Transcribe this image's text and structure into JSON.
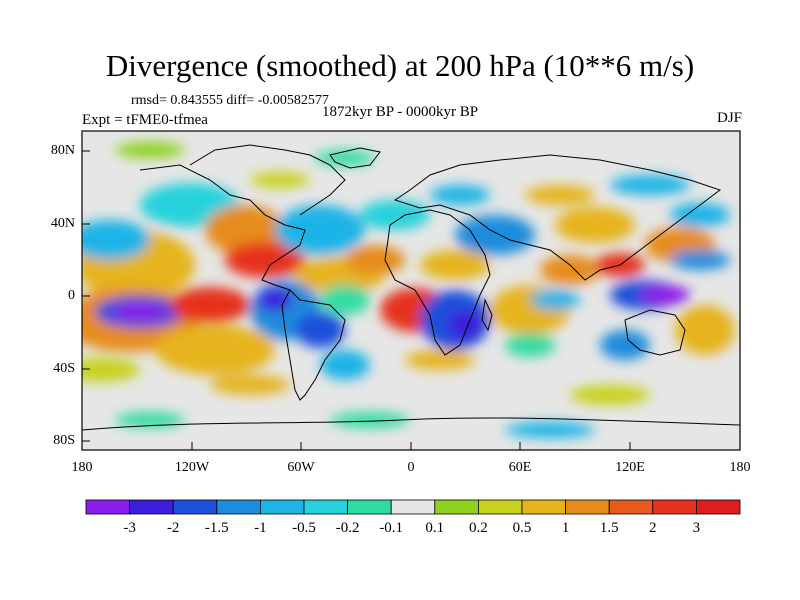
{
  "title": "Divergence (smoothed) at 200 hPa (10**6 m/s)",
  "stats": "rmsd= 0.843555 diff= -0.00582577",
  "experiment": "Expt = tFME0-tfmea",
  "period": "1872kyr BP - 0000kyr BP",
  "season": "DJF",
  "lat_ticks": [
    "80N",
    "40N",
    "0",
    "40S",
    "80S"
  ],
  "lon_ticks": [
    "180",
    "120W",
    "60W",
    "0",
    "60E",
    "120E",
    "180"
  ],
  "colorbar": {
    "labels": [
      "-3",
      "-2",
      "-1.5",
      "-1",
      "-0.5",
      "-0.2",
      "-0.1",
      "0.1",
      "0.2",
      "0.5",
      "1",
      "1.5",
      "2",
      "3"
    ],
    "colors": [
      "#8b1ee8",
      "#3c1edc",
      "#1e50dc",
      "#1e8cdc",
      "#1eb4e6",
      "#28d2dc",
      "#32dca0",
      "#e6e6e6",
      "#8cd21e",
      "#c8d21e",
      "#e6b41e",
      "#e68c1e",
      "#e65a1e",
      "#e6321e",
      "#dc1e1e"
    ]
  }
}
